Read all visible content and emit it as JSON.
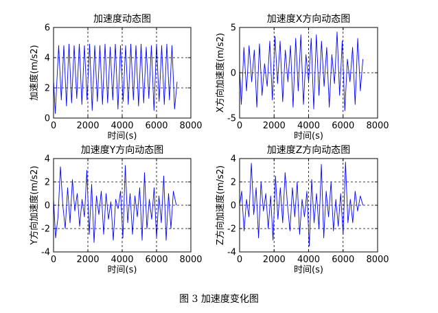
{
  "figure": {
    "caption": "图 3 加速度变化图"
  },
  "chart_data": [
    {
      "type": "line",
      "title": "加速度动态图",
      "xlabel": "时间(s)",
      "ylabel": "加速度(m/s2)",
      "xlim": [
        0,
        8000
      ],
      "ylim": [
        0,
        6
      ],
      "xticks": [
        "0",
        "2000",
        "4000",
        "6000",
        "8000"
      ],
      "yticks": [
        "0",
        "2",
        "4",
        "6"
      ],
      "grid": true,
      "color": "#0000ff",
      "series": [
        {
          "x": [
            0,
            100,
            300,
            450,
            600,
            750,
            900,
            1050,
            1200,
            1350,
            1500,
            1650,
            1800,
            1950,
            2100,
            2250,
            2400,
            2550,
            2700,
            2850,
            3000,
            3150,
            3300,
            3450,
            3600,
            3750,
            3900,
            4050,
            4200,
            4350,
            4500,
            4650,
            4800,
            4950,
            5100,
            5250,
            5400,
            5550,
            5700,
            5850,
            6000,
            6150,
            6300,
            6450,
            6600,
            6750,
            6900,
            7050,
            7200
          ],
          "y": [
            2.5,
            0.3,
            4.8,
            1.2,
            4.8,
            0.8,
            4.9,
            1.0,
            4.8,
            1.3,
            4.9,
            0.9,
            4.8,
            1.2,
            4.9,
            0.5,
            4.8,
            1.1,
            4.8,
            0.9,
            4.9,
            1.0,
            4.7,
            1.2,
            4.9,
            0.6,
            4.8,
            1.1,
            4.8,
            0.9,
            4.9,
            1.2,
            4.8,
            0.8,
            4.9,
            1.0,
            4.7,
            1.3,
            4.8,
            0.5,
            4.9,
            1.1,
            4.8,
            0.9,
            4.9,
            1.2,
            4.8,
            0.6,
            2.4
          ]
        }
      ]
    },
    {
      "type": "line",
      "title": "加速度X方向动态图",
      "xlabel": "时间(s)",
      "ylabel": "X方向加速度(m/s2)",
      "xlim": [
        0,
        8000
      ],
      "ylim": [
        -5,
        5
      ],
      "xticks": [
        "0",
        "2000",
        "4000",
        "6000",
        "8000"
      ],
      "yticks": [
        "-5",
        "0",
        "5"
      ],
      "grid": true,
      "color": "#0000ff",
      "series": [
        {
          "x": [
            0,
            100,
            250,
            400,
            550,
            700,
            850,
            1000,
            1150,
            1300,
            1450,
            1600,
            1750,
            1900,
            2050,
            2200,
            2350,
            2500,
            2650,
            2800,
            2950,
            3100,
            3250,
            3400,
            3550,
            3700,
            3850,
            4000,
            4150,
            4300,
            4450,
            4600,
            4750,
            4900,
            5050,
            5200,
            5350,
            5500,
            5650,
            5800,
            5950,
            6100,
            6250,
            6400,
            6550,
            6700,
            6850,
            7000,
            7150
          ],
          "y": [
            0.5,
            -3.5,
            2.8,
            -2.0,
            3.0,
            -1.0,
            2.5,
            -3.8,
            3.2,
            -2.5,
            1.0,
            -1.5,
            3.5,
            -3.0,
            4.0,
            -1.2,
            3.5,
            -3.2,
            2.5,
            -1.0,
            3.0,
            -3.8,
            3.8,
            -2.0,
            4.2,
            -3.5,
            2.0,
            -1.0,
            3.8,
            -4.0,
            4.2,
            -2.5,
            3.5,
            -1.5,
            2.8,
            -3.8,
            2.0,
            -1.2,
            4.5,
            -2.5,
            3.5,
            -4.2,
            1.5,
            -1.0,
            2.8,
            -3.5,
            3.8,
            -2.0,
            1.5
          ]
        }
      ]
    },
    {
      "type": "line",
      "title": "加速度Y方向动态图",
      "xlabel": "时间(s)",
      "ylabel": "Y方向加速度(m/s2)",
      "xlim": [
        0,
        8000
      ],
      "ylim": [
        -4,
        4
      ],
      "xticks": [
        "0",
        "2000",
        "4000",
        "6000",
        "8000"
      ],
      "yticks": [
        "-4",
        "-2",
        "0",
        "2",
        "4"
      ],
      "grid": true,
      "color": "#0000ff",
      "series": [
        {
          "x": [
            0,
            120,
            260,
            400,
            540,
            680,
            820,
            960,
            1100,
            1240,
            1380,
            1520,
            1660,
            1800,
            1940,
            2080,
            2220,
            2360,
            2500,
            2640,
            2780,
            2920,
            3060,
            3200,
            3340,
            3480,
            3620,
            3760,
            3900,
            4040,
            4180,
            4320,
            4460,
            4600,
            4740,
            4880,
            5020,
            5160,
            5300,
            5440,
            5580,
            5720,
            5860,
            6000,
            6140,
            6280,
            6420,
            6560,
            6700,
            6840,
            6980,
            7150
          ],
          "y": [
            0.5,
            -2.8,
            -1.0,
            3.3,
            0.0,
            -2.0,
            1.5,
            -1.5,
            2.2,
            -0.5,
            1.0,
            -1.8,
            0.5,
            -1.0,
            3.0,
            -2.5,
            1.8,
            -3.2,
            0.8,
            -0.8,
            1.2,
            -2.5,
            1.0,
            -1.2,
            0.3,
            -3.0,
            0.5,
            -0.3,
            1.2,
            -2.8,
            3.4,
            -1.5,
            1.0,
            -2.5,
            0.8,
            -1.0,
            1.5,
            -3.0,
            2.8,
            -2.0,
            0.5,
            -1.2,
            1.5,
            -2.8,
            0.8,
            -1.5,
            2.5,
            -3.0,
            1.0,
            -2.0,
            1.2,
            0.0
          ]
        }
      ]
    },
    {
      "type": "line",
      "title": "加速度Z方向动态图",
      "xlabel": "时间(s)",
      "ylabel": "Z方向加速度(m/s2)",
      "xlim": [
        0,
        8000
      ],
      "ylim": [
        -4,
        4
      ],
      "xticks": [
        "0",
        "2000",
        "4000",
        "6000",
        "8000"
      ],
      "yticks": [
        "-4",
        "-2",
        "0",
        "2",
        "4"
      ],
      "grid": true,
      "color": "#0000ff",
      "series": [
        {
          "x": [
            0,
            120,
            260,
            400,
            540,
            680,
            820,
            960,
            1100,
            1240,
            1380,
            1520,
            1660,
            1800,
            1940,
            2080,
            2220,
            2360,
            2500,
            2640,
            2780,
            2920,
            3060,
            3200,
            3340,
            3480,
            3620,
            3760,
            3900,
            4040,
            4180,
            4320,
            4460,
            4600,
            4740,
            4880,
            5020,
            5160,
            5300,
            5440,
            5580,
            5720,
            5860,
            6000,
            6140,
            6280,
            6420,
            6560,
            6700,
            6840,
            7000,
            7150
          ],
          "y": [
            0.0,
            1.2,
            -2.2,
            0.5,
            -1.0,
            3.6,
            -0.8,
            1.5,
            -2.8,
            2.0,
            -0.5,
            1.0,
            -2.0,
            0.8,
            -3.0,
            2.5,
            -1.2,
            1.5,
            -1.5,
            2.8,
            0.0,
            -2.2,
            1.5,
            -1.0,
            2.0,
            -2.5,
            0.5,
            -1.0,
            1.2,
            -3.5,
            2.2,
            -1.5,
            1.0,
            -2.0,
            3.5,
            -2.8,
            1.2,
            -1.0,
            2.0,
            -2.2,
            0.5,
            -1.8,
            1.0,
            -2.5,
            3.7,
            -1.5,
            0.5,
            -1.5,
            1.2,
            -0.5,
            0.8,
            0.0
          ]
        }
      ]
    }
  ]
}
